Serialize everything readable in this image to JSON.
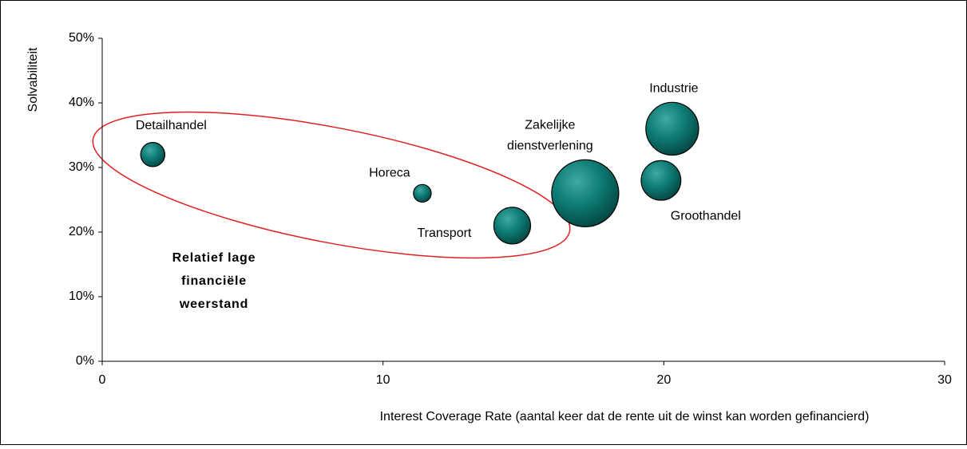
{
  "chart_data": {
    "type": "bubble",
    "x_label": "Interest Coverage Rate (aantal keer dat de rente uit de winst kan worden gefinancierd)",
    "y_label": "Solvabiliteit",
    "xlim": [
      0,
      30
    ],
    "xticks": [
      0,
      10,
      20,
      30
    ],
    "ylim": [
      0,
      50
    ],
    "yticks": [
      {
        "value": 0,
        "label": "0%"
      },
      {
        "value": 10,
        "label": "10%"
      },
      {
        "value": 20,
        "label": "20%"
      },
      {
        "value": 30,
        "label": "30%"
      },
      {
        "value": 40,
        "label": "40%"
      },
      {
        "value": 50,
        "label": "50%"
      }
    ],
    "color": "#0e7d76",
    "points": [
      {
        "label": [
          "Detailhandel"
        ],
        "x": 1.8,
        "y": 32,
        "size": 13
      },
      {
        "label": [
          "Horeca"
        ],
        "x": 11.4,
        "y": 26,
        "size": 7
      },
      {
        "label": [
          "Transport"
        ],
        "x": 14.6,
        "y": 21,
        "size": 30
      },
      {
        "label": [
          "Zakelijke",
          "dienstverlening"
        ],
        "x": 17.2,
        "y": 26,
        "size": 100
      },
      {
        "label": [
          "Industrie"
        ],
        "x": 20.3,
        "y": 36,
        "size": 62
      },
      {
        "label": [
          "Groothandel"
        ],
        "x": 19.9,
        "y": 28,
        "size": 35
      }
    ],
    "annotation": [
      "Relatief lage",
      "financiële",
      "weerstand"
    ]
  }
}
